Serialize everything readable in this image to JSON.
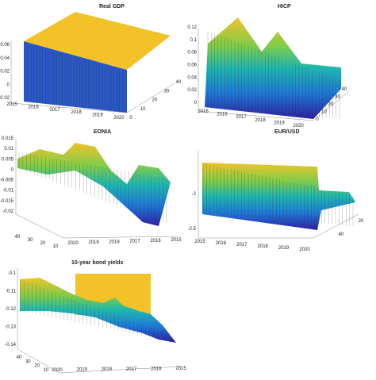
{
  "chart_data": [
    {
      "type": "area",
      "title": "Real GDP",
      "z_ticks": [
        "0.06",
        "0.04",
        "0.02",
        "0",
        "-0.02"
      ],
      "date_ticks": [
        "2015",
        "2016",
        "2017",
        "2018",
        "2019",
        "2020"
      ],
      "horizon_ticks": [
        "0",
        "10",
        "20",
        "30",
        "40"
      ],
      "zlim": [
        -0.02,
        0.07
      ],
      "horizon_range": [
        0,
        40
      ]
    },
    {
      "type": "area",
      "title": "HICP",
      "z_ticks": [
        "0.12",
        "0.1",
        "0.08",
        "0.06",
        "0.04",
        "0.02",
        "0"
      ],
      "date_ticks": [
        "2015",
        "2016",
        "2017",
        "2018",
        "2019",
        "2020"
      ],
      "horizon_ticks": [
        "0",
        "10",
        "20",
        "30",
        "40"
      ],
      "zlim": [
        0,
        0.13
      ],
      "horizon_range": [
        0,
        40
      ]
    },
    {
      "type": "area",
      "title": "EONIA",
      "z_ticks": [
        "0.015",
        "0.01",
        "0.005",
        "0",
        "-0.005",
        "-0.01",
        "-0.015",
        "-0.02"
      ],
      "date_ticks": [
        "2020",
        "2019",
        "2018",
        "2017",
        "2016",
        "2015"
      ],
      "horizon_ticks": [
        "40",
        "30",
        "20",
        "10"
      ],
      "zlim": [
        -0.02,
        0.015
      ],
      "horizon_range": [
        0,
        40
      ]
    },
    {
      "type": "area",
      "title": "EUR/USD",
      "z_ticks": [
        "-2",
        "-2.5"
      ],
      "date_ticks": [
        "2015",
        "2016",
        "2017",
        "2018",
        "2019",
        "2020"
      ],
      "horizon_ticks": [
        "40",
        "20"
      ],
      "zlim": [
        -2.5,
        -1.6
      ],
      "horizon_range": [
        0,
        40
      ]
    },
    {
      "type": "area",
      "title": "10-year bond yields",
      "z_ticks": [
        "-0.1",
        "-0.11",
        "-0.12",
        "-0.13",
        "-0.14"
      ],
      "date_ticks": [
        "2020",
        "2019",
        "2018",
        "2017",
        "2016",
        "2015"
      ],
      "horizon_ticks": [
        "40",
        "30",
        "20",
        "10"
      ],
      "zlim": [
        -0.14,
        -0.095
      ],
      "horizon_range": [
        0,
        40
      ]
    }
  ],
  "colors": {
    "low": "#2d1f9e",
    "mid_low": "#1f78d6",
    "mid": "#1fb7b0",
    "mid_high": "#7fcc4a",
    "high": "#f2c228",
    "edge": "#222222"
  }
}
